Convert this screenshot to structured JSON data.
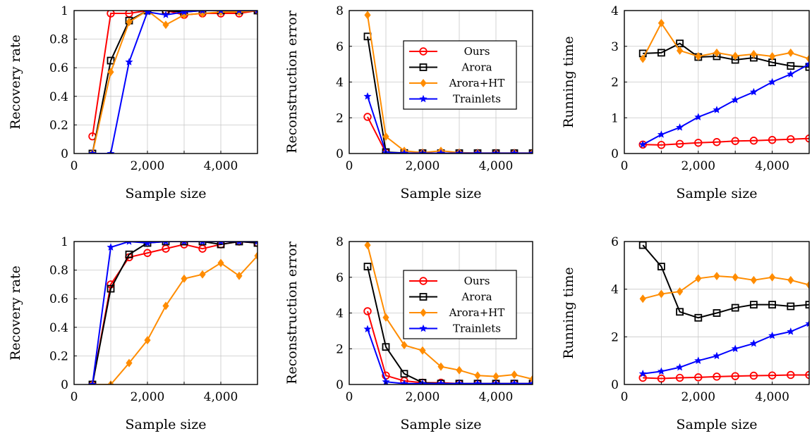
{
  "colors": {
    "ours": "#ff0000",
    "arora": "#000000",
    "arora_ht": "#ff8c00",
    "trainlets": "#0000ff"
  },
  "chart_data": [
    {
      "type": "line",
      "xlabel": "Sample size",
      "ylabel": "Recovery rate",
      "xlim": [
        0,
        5000
      ],
      "ylim": [
        0,
        1
      ],
      "xticks": [
        0,
        2000,
        4000
      ],
      "xtick_labels": [
        "0",
        "2,000",
        "4,000"
      ],
      "yticks": [
        0,
        0.2,
        0.4,
        0.6,
        0.8,
        1
      ],
      "ytick_labels": [
        "0",
        "0.2",
        "0.4",
        "0.6",
        "0.8",
        "1"
      ],
      "grid": true,
      "legend": null,
      "series": [
        {
          "key": "ours",
          "x": [
            500,
            1000,
            1500,
            2000,
            2500,
            3000,
            3500,
            4000,
            4500,
            5000
          ],
          "y": [
            0.12,
            0.98,
            0.98,
            1.0,
            1.0,
            0.97,
            0.98,
            0.98,
            0.98,
            1.0
          ]
        },
        {
          "key": "arora",
          "x": [
            500,
            1000,
            1500,
            2000,
            2500,
            3000,
            3500,
            4000,
            4500,
            5000
          ],
          "y": [
            0,
            0.65,
            0.93,
            1.0,
            1.0,
            0.99,
            1.0,
            1.0,
            1.0,
            1.0
          ]
        },
        {
          "key": "arora_ht",
          "x": [
            500,
            1000,
            1500,
            2000,
            2500,
            3000,
            3500,
            4000,
            4500,
            5000
          ],
          "y": [
            0,
            0.57,
            0.92,
            1.0,
            0.9,
            0.97,
            0.98,
            0.99,
            0.99,
            1.0
          ]
        },
        {
          "key": "trainlets",
          "x": [
            500,
            1000,
            1500,
            2000,
            2500,
            3000,
            3500,
            4000,
            4500,
            5000
          ],
          "y": [
            0,
            0,
            0.64,
            0.99,
            0.97,
            0.99,
            1.0,
            1.0,
            1.0,
            1.0
          ]
        }
      ]
    },
    {
      "type": "line",
      "xlabel": "Sample size",
      "ylabel": "Reconstruction error",
      "xlim": [
        0,
        5000
      ],
      "ylim": [
        0,
        8
      ],
      "xticks": [
        0,
        2000,
        4000
      ],
      "xtick_labels": [
        "0",
        "2,000",
        "4,000"
      ],
      "yticks": [
        0,
        2,
        4,
        6,
        8
      ],
      "ytick_labels": [
        "0",
        "2",
        "4",
        "6",
        "8"
      ],
      "grid": true,
      "legend": {
        "position": "center-right",
        "entries": [
          "Ours",
          "Arora",
          "Arora+HT",
          "Trainlets"
        ]
      },
      "series": [
        {
          "key": "ours",
          "x": [
            500,
            1000,
            1500,
            2000,
            2500,
            3000,
            3500,
            4000,
            4500,
            5000
          ],
          "y": [
            2.05,
            0.05,
            0.02,
            0.02,
            0.02,
            0.02,
            0.02,
            0.02,
            0.02,
            0.02
          ]
        },
        {
          "key": "arora",
          "x": [
            500,
            1000,
            1500,
            2000,
            2500,
            3000,
            3500,
            4000,
            4500,
            5000
          ],
          "y": [
            6.55,
            0.08,
            0.03,
            0.02,
            0.02,
            0.02,
            0.02,
            0.02,
            0.02,
            0.02
          ]
        },
        {
          "key": "arora_ht",
          "x": [
            500,
            1000,
            1500,
            2000,
            2500,
            3000,
            3500,
            4000,
            4500,
            5000
          ],
          "y": [
            7.75,
            0.95,
            0.15,
            0.05,
            0.15,
            0.05,
            0.03,
            0.03,
            0.03,
            0.03
          ]
        },
        {
          "key": "trainlets",
          "x": [
            500,
            1000,
            1500,
            2000,
            2500,
            3000,
            3500,
            4000,
            4500,
            5000
          ],
          "y": [
            3.2,
            0.05,
            0.02,
            0.02,
            0.02,
            0.02,
            0.02,
            0.02,
            0.02,
            0.02
          ]
        }
      ]
    },
    {
      "type": "line",
      "xlabel": "Sample size",
      "ylabel": "Running time",
      "xlim": [
        0,
        5000
      ],
      "ylim": [
        0,
        4
      ],
      "xticks": [
        0,
        2000,
        4000
      ],
      "xtick_labels": [
        "0",
        "2,000",
        "4,000"
      ],
      "yticks": [
        0,
        1,
        2,
        3,
        4
      ],
      "ytick_labels": [
        "0",
        "1",
        "2",
        "3",
        "4"
      ],
      "grid": true,
      "legend": null,
      "series": [
        {
          "key": "ours",
          "x": [
            500,
            1000,
            1500,
            2000,
            2500,
            3000,
            3500,
            4000,
            4500,
            5000
          ],
          "y": [
            0.25,
            0.24,
            0.27,
            0.3,
            0.32,
            0.35,
            0.36,
            0.38,
            0.4,
            0.42
          ]
        },
        {
          "key": "arora",
          "x": [
            500,
            1000,
            1500,
            2000,
            2500,
            3000,
            3500,
            4000,
            4500,
            5000
          ],
          "y": [
            2.8,
            2.82,
            3.08,
            2.7,
            2.72,
            2.62,
            2.68,
            2.55,
            2.45,
            2.42
          ]
        },
        {
          "key": "arora_ht",
          "x": [
            500,
            1000,
            1500,
            2000,
            2500,
            3000,
            3500,
            4000,
            4500,
            5000
          ],
          "y": [
            2.65,
            3.65,
            2.88,
            2.72,
            2.82,
            2.73,
            2.78,
            2.72,
            2.82,
            2.65
          ]
        },
        {
          "key": "trainlets",
          "x": [
            500,
            1000,
            1500,
            2000,
            2500,
            3000,
            3500,
            4000,
            4500,
            5000
          ],
          "y": [
            0.25,
            0.53,
            0.73,
            1.02,
            1.22,
            1.5,
            1.72,
            2.0,
            2.22,
            2.5
          ]
        }
      ]
    },
    {
      "type": "line",
      "xlabel": "Sample size",
      "ylabel": "Recovery rate",
      "xlim": [
        0,
        5000
      ],
      "ylim": [
        0,
        1
      ],
      "xticks": [
        0,
        2000,
        4000
      ],
      "xtick_labels": [
        "0",
        "2,000",
        "4,000"
      ],
      "yticks": [
        0,
        0.2,
        0.4,
        0.6,
        0.8,
        1
      ],
      "ytick_labels": [
        "0",
        "0.2",
        "0.4",
        "0.6",
        "0.8",
        "1"
      ],
      "grid": true,
      "legend": null,
      "series": [
        {
          "key": "ours",
          "x": [
            500,
            1000,
            1500,
            2000,
            2500,
            3000,
            3500,
            4000,
            4500,
            5000
          ],
          "y": [
            0,
            0.7,
            0.89,
            0.92,
            0.95,
            0.98,
            0.95,
            0.98,
            1.0,
            0.99
          ]
        },
        {
          "key": "arora",
          "x": [
            500,
            1000,
            1500,
            2000,
            2500,
            3000,
            3500,
            4000,
            4500,
            5000
          ],
          "y": [
            0,
            0.67,
            0.91,
            0.99,
            1.0,
            1.0,
            1.0,
            0.98,
            1.0,
            0.99
          ]
        },
        {
          "key": "arora_ht",
          "x": [
            500,
            1000,
            1500,
            2000,
            2500,
            3000,
            3500,
            4000,
            4500,
            5000
          ],
          "y": [
            0,
            0,
            0.15,
            0.31,
            0.55,
            0.74,
            0.77,
            0.85,
            0.76,
            0.9
          ]
        },
        {
          "key": "trainlets",
          "x": [
            500,
            1000,
            1500,
            2000,
            2500,
            3000,
            3500,
            4000,
            4500,
            5000
          ],
          "y": [
            0,
            0.96,
            1.0,
            0.99,
            1.0,
            1.0,
            1.0,
            1.0,
            1.0,
            1.0
          ]
        }
      ]
    },
    {
      "type": "line",
      "xlabel": "Sample size",
      "ylabel": "Reconstruction error",
      "xlim": [
        0,
        5000
      ],
      "ylim": [
        0,
        8
      ],
      "xticks": [
        0,
        2000,
        4000
      ],
      "xtick_labels": [
        "0",
        "2,000",
        "4,000"
      ],
      "yticks": [
        0,
        2,
        4,
        6,
        8
      ],
      "ytick_labels": [
        "0",
        "2",
        "4",
        "6",
        "8"
      ],
      "grid": true,
      "legend": {
        "position": "center-right",
        "entries": [
          "Ours",
          "Arora",
          "Arora+HT",
          "Trainlets"
        ]
      },
      "series": [
        {
          "key": "ours",
          "x": [
            500,
            1000,
            1500,
            2000,
            2500,
            3000,
            3500,
            4000,
            4500,
            5000
          ],
          "y": [
            4.1,
            0.5,
            0.2,
            0.1,
            0.1,
            0.05,
            0.05,
            0.05,
            0.05,
            0.05
          ]
        },
        {
          "key": "arora",
          "x": [
            500,
            1000,
            1500,
            2000,
            2500,
            3000,
            3500,
            4000,
            4500,
            5000
          ],
          "y": [
            6.6,
            2.1,
            0.6,
            0.1,
            0.05,
            0.05,
            0.05,
            0.05,
            0.05,
            0.05
          ]
        },
        {
          "key": "arora_ht",
          "x": [
            500,
            1000,
            1500,
            2000,
            2500,
            3000,
            3500,
            4000,
            4500,
            5000
          ],
          "y": [
            7.8,
            3.75,
            2.2,
            1.9,
            1.0,
            0.8,
            0.5,
            0.45,
            0.55,
            0.3
          ]
        },
        {
          "key": "trainlets",
          "x": [
            500,
            1000,
            1500,
            2000,
            2500,
            3000,
            3500,
            4000,
            4500,
            5000
          ],
          "y": [
            3.1,
            0.15,
            0.05,
            0.05,
            0.05,
            0.05,
            0.05,
            0.05,
            0.05,
            0.05
          ]
        }
      ]
    },
    {
      "type": "line",
      "xlabel": "Sample size",
      "ylabel": "Running time",
      "xlim": [
        0,
        5000
      ],
      "ylim": [
        0,
        6
      ],
      "xticks": [
        0,
        2000,
        4000
      ],
      "xtick_labels": [
        "0",
        "2,000",
        "4,000"
      ],
      "yticks": [
        0,
        2,
        4,
        6
      ],
      "ytick_labels": [
        "0",
        "2",
        "4",
        "6"
      ],
      "grid": true,
      "legend": null,
      "series": [
        {
          "key": "ours",
          "x": [
            500,
            1000,
            1500,
            2000,
            2500,
            3000,
            3500,
            4000,
            4500,
            5000
          ],
          "y": [
            0.28,
            0.25,
            0.28,
            0.3,
            0.33,
            0.35,
            0.37,
            0.38,
            0.4,
            0.4
          ]
        },
        {
          "key": "arora",
          "x": [
            500,
            1000,
            1500,
            2000,
            2500,
            3000,
            3500,
            4000,
            4500,
            5000
          ],
          "y": [
            5.85,
            4.95,
            3.05,
            2.8,
            3.0,
            3.22,
            3.35,
            3.35,
            3.28,
            3.35
          ]
        },
        {
          "key": "arora_ht",
          "x": [
            500,
            1000,
            1500,
            2000,
            2500,
            3000,
            3500,
            4000,
            4500,
            5000
          ],
          "y": [
            3.6,
            3.8,
            3.9,
            4.45,
            4.55,
            4.5,
            4.38,
            4.5,
            4.38,
            4.18
          ]
        },
        {
          "key": "trainlets",
          "x": [
            500,
            1000,
            1500,
            2000,
            2500,
            3000,
            3500,
            4000,
            4500,
            5000
          ],
          "y": [
            0.45,
            0.55,
            0.72,
            1.0,
            1.2,
            1.5,
            1.72,
            2.05,
            2.22,
            2.55
          ]
        }
      ]
    }
  ]
}
